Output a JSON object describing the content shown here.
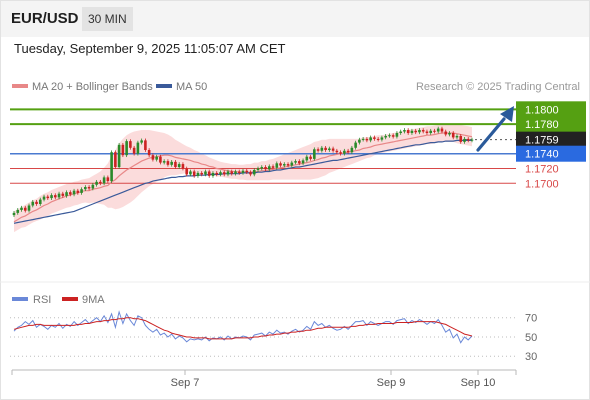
{
  "header": {
    "symbol": "EUR/USD",
    "timeframe": "30 MIN"
  },
  "datetime": "Tuesday, September 9, 2025 11:05:07 AM CET",
  "legend": {
    "ma20_label": "MA 20 + Bollinger Bands",
    "ma50_label": "MA 50",
    "credit": "Research © 2025 Trading Central",
    "rsi_label": "RSI",
    "rsi_ma_label": "9MA"
  },
  "colors": {
    "candle_up": "#2a8a2a",
    "candle_down": "#cc2222",
    "ma20": "#e88888",
    "ma50": "#3a5a9a",
    "band_fill": "#fbdcdc",
    "resistance": "#55a012",
    "support": "#d84848",
    "current_line": "#4a7ad0",
    "arrow": "#2a5a9a",
    "rsi": "#6a88d8",
    "rsi_ma": "#cc2222"
  },
  "chart_data": [
    {
      "type": "candlestick",
      "ylim": [
        1.1572,
        1.1818
      ],
      "x_ticks": [
        "Sep 7",
        "Sep 9",
        "Sep 10"
      ],
      "levels": [
        {
          "value": 1.18,
          "label": "1.1800",
          "kind": "resistance"
        },
        {
          "value": 1.178,
          "label": "1.1780",
          "kind": "resistance"
        },
        {
          "value": 1.1759,
          "label": "1.1759",
          "kind": "current"
        },
        {
          "value": 1.174,
          "label": "1.1740",
          "kind": "pivot"
        },
        {
          "value": 1.172,
          "label": "1.1720",
          "kind": "support"
        },
        {
          "value": 1.17,
          "label": "1.1700",
          "kind": "support"
        }
      ],
      "close": [
        1.166,
        1.1664,
        1.1667,
        1.1663,
        1.167,
        1.1675,
        1.1672,
        1.1678,
        1.1682,
        1.168,
        1.1684,
        1.1681,
        1.1686,
        1.1683,
        1.1688,
        1.1685,
        1.169,
        1.1687,
        1.1692,
        1.1695,
        1.1693,
        1.1698,
        1.1702,
        1.17,
        1.1708,
        1.1703,
        1.1742,
        1.1722,
        1.1752,
        1.1738,
        1.1757,
        1.1748,
        1.174,
        1.1755,
        1.1758,
        1.1745,
        1.1738,
        1.1732,
        1.1736,
        1.1728,
        1.173,
        1.1725,
        1.1729,
        1.1722,
        1.1726,
        1.172,
        1.1712,
        1.1716,
        1.171,
        1.1714,
        1.1712,
        1.1716,
        1.171,
        1.1714,
        1.1712,
        1.1715,
        1.1712,
        1.1716,
        1.1713,
        1.1716,
        1.1714,
        1.1717,
        1.1715,
        1.1712,
        1.1718,
        1.172,
        1.1722,
        1.1719,
        1.1723,
        1.1721,
        1.1727,
        1.1724,
        1.1726,
        1.1724,
        1.1728,
        1.173,
        1.1727,
        1.1731,
        1.1736,
        1.1733,
        1.1746,
        1.1744,
        1.1748,
        1.1745,
        1.1747,
        1.1744,
        1.1742,
        1.174,
        1.1744,
        1.1742,
        1.1748,
        1.1755,
        1.1759,
        1.176,
        1.1758,
        1.1762,
        1.176,
        1.1759,
        1.1762,
        1.1764,
        1.1765,
        1.1763,
        1.1768,
        1.177,
        1.1772,
        1.1768,
        1.1771,
        1.1769,
        1.1772,
        1.177,
        1.1768,
        1.1771,
        1.177,
        1.1774,
        1.177,
        1.1766,
        1.1768,
        1.1762,
        1.1764,
        1.1756,
        1.176,
        1.1758,
        1.1759
      ],
      "ma20": [
        1.1648,
        1.1651,
        1.1654,
        1.1656,
        1.1659,
        1.1662,
        1.1664,
        1.1667,
        1.167,
        1.1672,
        1.1675,
        1.1677,
        1.1679,
        1.1681,
        1.1683,
        1.1684,
        1.1686,
        1.1687,
        1.1689,
        1.169,
        1.169,
        1.1692,
        1.1693,
        1.1694,
        1.1696,
        1.1697,
        1.1702,
        1.1705,
        1.171,
        1.1714,
        1.1718,
        1.1721,
        1.1724,
        1.1727,
        1.173,
        1.1732,
        1.1734,
        1.1735,
        1.1736,
        1.1737,
        1.1738,
        1.1738,
        1.1737,
        1.1735,
        1.1734,
        1.1733,
        1.1732,
        1.1731,
        1.1729,
        1.1728,
        1.1726,
        1.1725,
        1.1723,
        1.1722,
        1.172,
        1.1719,
        1.1718,
        1.1717,
        1.1716,
        1.1716,
        1.1715,
        1.1715,
        1.1715,
        1.1715,
        1.1716,
        1.1716,
        1.1717,
        1.1717,
        1.1718,
        1.1719,
        1.172,
        1.1721,
        1.1722,
        1.1723,
        1.1724,
        1.1725,
        1.1726,
        1.1727,
        1.1728,
        1.1729,
        1.1731,
        1.1732,
        1.1734,
        1.1735,
        1.1737,
        1.1738,
        1.1739,
        1.174,
        1.1741,
        1.1742,
        1.1743,
        1.1744,
        1.1745,
        1.1747,
        1.1748,
        1.1749,
        1.1751,
        1.1752,
        1.1753,
        1.1754,
        1.1755,
        1.1756,
        1.1757,
        1.1758,
        1.1759,
        1.176,
        1.1761,
        1.1762,
        1.1763,
        1.1764,
        1.1765,
        1.1765,
        1.1766,
        1.1767,
        1.1768,
        1.1768,
        1.1768,
        1.1768,
        1.1767,
        1.1766,
        1.1765,
        1.1764,
        1.1763
      ],
      "ma50": [
        1.1646,
        1.1647,
        1.1648,
        1.1649,
        1.165,
        1.1651,
        1.1652,
        1.1653,
        1.1654,
        1.1655,
        1.1656,
        1.1657,
        1.1658,
        1.1659,
        1.166,
        1.1661,
        1.1662,
        1.1664,
        1.1666,
        1.1668,
        1.167,
        1.1672,
        1.1674,
        1.1676,
        1.1678,
        1.168,
        1.1682,
        1.1684,
        1.1686,
        1.1688,
        1.169,
        1.1692,
        1.1694,
        1.1696,
        1.1698,
        1.17,
        1.1701,
        1.1703,
        1.1704,
        1.1705,
        1.1706,
        1.1707,
        1.1708,
        1.1708,
        1.1709,
        1.1709,
        1.171,
        1.171,
        1.171,
        1.1711,
        1.1711,
        1.1711,
        1.1712,
        1.1712,
        1.1712,
        1.1712,
        1.1713,
        1.1713,
        1.1713,
        1.1713,
        1.1713,
        1.1714,
        1.1714,
        1.1714,
        1.1714,
        1.1715,
        1.1715,
        1.1716,
        1.1716,
        1.1717,
        1.1718,
        1.1718,
        1.1719,
        1.172,
        1.1721,
        1.1722,
        1.1722,
        1.1723,
        1.1724,
        1.1725,
        1.1726,
        1.1727,
        1.1728,
        1.1729,
        1.173,
        1.1731,
        1.1731,
        1.1732,
        1.1733,
        1.1734,
        1.1735,
        1.1736,
        1.1737,
        1.1738,
        1.1739,
        1.174,
        1.1741,
        1.1742,
        1.1743,
        1.1744,
        1.1745,
        1.1746,
        1.1747,
        1.1748,
        1.1749,
        1.175,
        1.1751,
        1.1752,
        1.1752,
        1.1753,
        1.1754,
        1.1755,
        1.1755,
        1.1756,
        1.1756,
        1.1757,
        1.1757,
        1.1757,
        1.1758,
        1.1758,
        1.1758,
        1.1758,
        1.1758
      ],
      "band_width": [
        0.0014,
        0.0014,
        0.0014,
        0.0015,
        0.0015,
        0.0015,
        0.0015,
        0.0016,
        0.0016,
        0.0016,
        0.0016,
        0.0016,
        0.0016,
        0.0016,
        0.0016,
        0.0016,
        0.0016,
        0.0016,
        0.0016,
        0.0016,
        0.0017,
        0.0018,
        0.002,
        0.0022,
        0.0025,
        0.003,
        0.0035,
        0.004,
        0.0044,
        0.0046,
        0.0047,
        0.0047,
        0.0046,
        0.0044,
        0.0042,
        0.004,
        0.0038,
        0.0036,
        0.0034,
        0.0032,
        0.003,
        0.0028,
        0.0026,
        0.0024,
        0.0022,
        0.002,
        0.0018,
        0.0017,
        0.0016,
        0.0015,
        0.0014,
        0.0013,
        0.0012,
        0.0011,
        0.0011,
        0.001,
        0.001,
        0.001,
        0.001,
        0.001,
        0.001,
        0.001,
        0.0011,
        0.0011,
        0.0012,
        0.0012,
        0.0013,
        0.0013,
        0.0014,
        0.0014,
        0.0015,
        0.0016,
        0.0017,
        0.0018,
        0.0019,
        0.002,
        0.0021,
        0.0022,
        0.0023,
        0.0024,
        0.0025,
        0.0025,
        0.0025,
        0.0024,
        0.0023,
        0.0022,
        0.0021,
        0.002,
        0.0019,
        0.0018,
        0.0017,
        0.0016,
        0.0015,
        0.0015,
        0.0014,
        0.0014,
        0.0013,
        0.0013,
        0.0012,
        0.0012,
        0.0012,
        0.0012,
        0.0012,
        0.0012,
        0.0012,
        0.0012,
        0.0012,
        0.0012,
        0.0012,
        0.0012,
        0.0012,
        0.0012,
        0.0012,
        0.0012,
        0.0012,
        0.0012,
        0.0012,
        0.0012,
        0.0013,
        0.0013,
        0.0013,
        0.0013,
        0.0013
      ]
    },
    {
      "type": "line",
      "indicator": "RSI",
      "ylim": [
        24,
        78
      ],
      "y_ticks": [
        70,
        50,
        30
      ],
      "rsi": [
        56,
        60,
        62,
        66,
        63,
        67,
        60,
        63,
        61,
        58,
        62,
        60,
        64,
        59,
        63,
        61,
        66,
        62,
        65,
        68,
        64,
        67,
        70,
        66,
        72,
        65,
        74,
        60,
        76,
        64,
        74,
        67,
        62,
        72,
        70,
        62,
        58,
        55,
        58,
        52,
        54,
        50,
        53,
        48,
        51,
        49,
        45,
        48,
        47,
        48,
        47,
        50,
        46,
        49,
        48,
        50,
        47,
        51,
        48,
        50,
        49,
        51,
        50,
        47,
        52,
        53,
        54,
        51,
        55,
        53,
        57,
        54,
        55,
        53,
        56,
        58,
        55,
        57,
        61,
        58,
        66,
        62,
        64,
        60,
        62,
        59,
        57,
        58,
        61,
        58,
        62,
        66,
        66,
        67,
        62,
        66,
        64,
        62,
        64,
        66,
        66,
        63,
        67,
        68,
        69,
        64,
        67,
        65,
        68,
        66,
        63,
        66,
        64,
        68,
        62,
        55,
        58,
        49,
        53,
        44,
        50,
        47,
        51
      ],
      "rsi_ma": [
        58,
        59,
        60,
        61,
        62,
        62,
        63,
        63,
        62,
        62,
        62,
        62,
        62,
        62,
        62,
        62,
        62,
        63,
        63,
        64,
        64,
        65,
        66,
        66,
        67,
        67,
        68,
        68,
        69,
        69,
        70,
        70,
        69,
        69,
        68,
        67,
        65,
        63,
        61,
        59,
        57,
        56,
        54,
        53,
        52,
        51,
        50,
        50,
        49,
        49,
        49,
        49,
        48,
        48,
        48,
        48,
        48,
        48,
        48,
        49,
        49,
        49,
        49,
        49,
        50,
        50,
        51,
        51,
        52,
        52,
        53,
        53,
        54,
        54,
        55,
        55,
        56,
        56,
        57,
        57,
        58,
        59,
        59,
        60,
        60,
        60,
        60,
        60,
        60,
        60,
        61,
        61,
        62,
        62,
        63,
        63,
        63,
        64,
        64,
        64,
        64,
        64,
        65,
        65,
        65,
        65,
        65,
        66,
        66,
        66,
        66,
        66,
        66,
        65,
        64,
        63,
        61,
        59,
        57,
        55,
        53,
        52,
        51
      ]
    }
  ]
}
